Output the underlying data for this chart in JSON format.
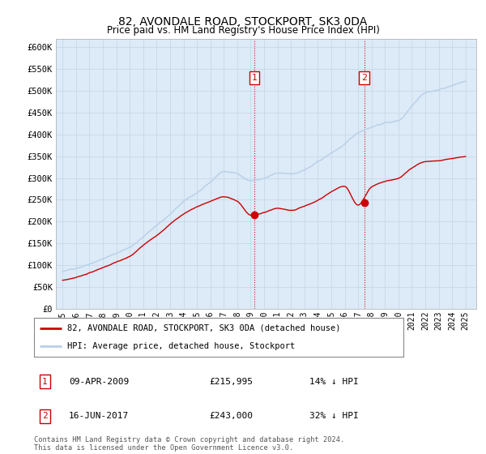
{
  "title": "82, AVONDALE ROAD, STOCKPORT, SK3 0DA",
  "subtitle": "Price paid vs. HM Land Registry's House Price Index (HPI)",
  "ylabel_ticks": [
    "£0",
    "£50K",
    "£100K",
    "£150K",
    "£200K",
    "£250K",
    "£300K",
    "£350K",
    "£400K",
    "£450K",
    "£500K",
    "£550K",
    "£600K"
  ],
  "ytick_values": [
    0,
    50000,
    100000,
    150000,
    200000,
    250000,
    300000,
    350000,
    400000,
    450000,
    500000,
    550000,
    600000
  ],
  "ylim": [
    0,
    620000
  ],
  "xlim_start": 1994.5,
  "xlim_end": 2025.8,
  "hpi_color": "#b8cfe8",
  "price_color": "#cc0000",
  "bg_color": "#ffffff",
  "plot_bg_color": "#ddeaf7",
  "grid_color": "#c8d8e8",
  "point1_x": 2009.27,
  "point1_y": 215995,
  "point2_x": 2017.46,
  "point2_y": 243000,
  "legend_line1": "82, AVONDALE ROAD, STOCKPORT, SK3 0DA (detached house)",
  "legend_line2": "HPI: Average price, detached house, Stockport",
  "note1_num": "1",
  "note1_date": "09-APR-2009",
  "note1_price": "£215,995",
  "note1_hpi": "14% ↓ HPI",
  "note2_num": "2",
  "note2_date": "16-JUN-2017",
  "note2_price": "£243,000",
  "note2_hpi": "32% ↓ HPI",
  "footer": "Contains HM Land Registry data © Crown copyright and database right 2024.\nThis data is licensed under the Open Government Licence v3.0."
}
